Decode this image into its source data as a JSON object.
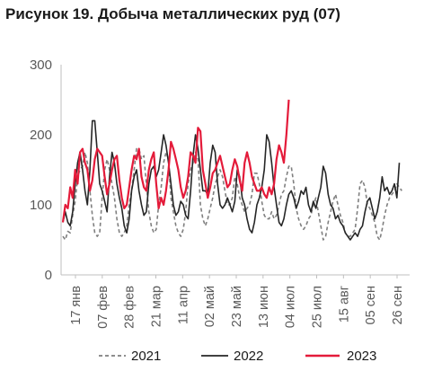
{
  "title": "Рисунок 19. Добыча металлических руд (07)",
  "chart_data": {
    "type": "line",
    "title": "Рисунок 19. Добыча металлических руд (07)",
    "xlabel": "",
    "ylabel": "",
    "ylim": [
      0,
      300
    ],
    "yticks": [
      0,
      100,
      200,
      300
    ],
    "grid": false,
    "legend_position": "bottom",
    "xtick_labels": [
      "17 янв",
      "07 фев",
      "28 фев",
      "21 мар",
      "11 апр",
      "02 май",
      "23 май",
      "13 июн",
      "04 июл",
      "25 июл",
      "15 авг",
      "05 сен",
      "26 сен"
    ],
    "series": [
      {
        "name": "2021",
        "color": "#7f7f7f",
        "dash": "dashed",
        "values": [
          55,
          50,
          62,
          60,
          85,
          105,
          140,
          150,
          155,
          175,
          160,
          120,
          85,
          60,
          55,
          60,
          110,
          150,
          165,
          150,
          130,
          110,
          80,
          60,
          55,
          60,
          70,
          100,
          120,
          150,
          180,
          180,
          165,
          170,
          130,
          90,
          70,
          60,
          65,
          100,
          125,
          160,
          175,
          165,
          110,
          90,
          70,
          60,
          55,
          65,
          90,
          130,
          150,
          160,
          175,
          165,
          100,
          80,
          70,
          80,
          95,
          110,
          130,
          140,
          150,
          140,
          120,
          100,
          100,
          110,
          140,
          130,
          110,
          100,
          90,
          95,
          100,
          115,
          145,
          145,
          130,
          105,
          85,
          80,
          80,
          90,
          80,
          85,
          100,
          115,
          120,
          140,
          155,
          155,
          130,
          95,
          80,
          70,
          65,
          70,
          80,
          85,
          100,
          110,
          90,
          70,
          50,
          55,
          75,
          90,
          105,
          115,
          100,
          85,
          75,
          60,
          55,
          55,
          60,
          65,
          95,
          130,
          135,
          125,
          100,
          95,
          85,
          75,
          55,
          50,
          65,
          85,
          100,
          110,
          115,
          120,
          130,
          125,
          120
        ]
      },
      {
        "name": "2022",
        "color": "#262626",
        "dash": "solid",
        "values": [
          75,
          90,
          75,
          70,
          90,
          130,
          160,
          175,
          150,
          120,
          100,
          150,
          220,
          220,
          175,
          130,
          120,
          105,
          90,
          140,
          175,
          160,
          130,
          110,
          95,
          70,
          60,
          80,
          120,
          140,
          150,
          120,
          100,
          85,
          90,
          130,
          150,
          155,
          140,
          150,
          175,
          200,
          185,
          160,
          130,
          100,
          85,
          90,
          105,
          100,
          85,
          80,
          120,
          170,
          200,
          180,
          150,
          120,
          120,
          115,
          160,
          185,
          175,
          130,
          100,
          95,
          100,
          110,
          100,
          90,
          105,
          150,
          140,
          110,
          100,
          80,
          65,
          60,
          75,
          100,
          110,
          125,
          150,
          200,
          190,
          160,
          125,
          100,
          75,
          70,
          80,
          100,
          115,
          120,
          110,
          95,
          105,
          120,
          115,
          125,
          100,
          90,
          105,
          95,
          110,
          125,
          155,
          145,
          115,
          100,
          95,
          80,
          85,
          75,
          70,
          60,
          55,
          50,
          55,
          60,
          55,
          65,
          70,
          90,
          105,
          110,
          95,
          80,
          90,
          110,
          140,
          120,
          125,
          115,
          120,
          130,
          110,
          160
        ]
      },
      {
        "name": "2023",
        "color": "#e41b3a",
        "dash": "solid",
        "values": [
          75,
          100,
          95,
          125,
          110,
          150,
          130,
          175,
          180,
          160,
          150,
          120,
          135,
          165,
          180,
          175,
          170,
          140,
          115,
          130,
          150,
          165,
          170,
          135,
          110,
          95,
          100,
          125,
          150,
          170,
          165,
          180,
          140,
          125,
          120,
          150,
          165,
          175,
          130,
          95,
          110,
          100,
          120,
          150,
          190,
          180,
          165,
          150,
          125,
          110,
          120,
          140,
          175,
          170,
          160,
          210,
          205,
          150,
          130,
          110,
          125,
          145,
          150,
          160,
          170,
          155,
          140,
          125,
          130,
          150,
          165,
          155,
          135,
          120,
          160,
          175,
          160,
          140,
          130,
          120,
          120,
          125,
          115,
          110,
          125,
          115,
          130,
          165,
          185,
          175,
          160,
          200,
          250
        ]
      }
    ]
  }
}
